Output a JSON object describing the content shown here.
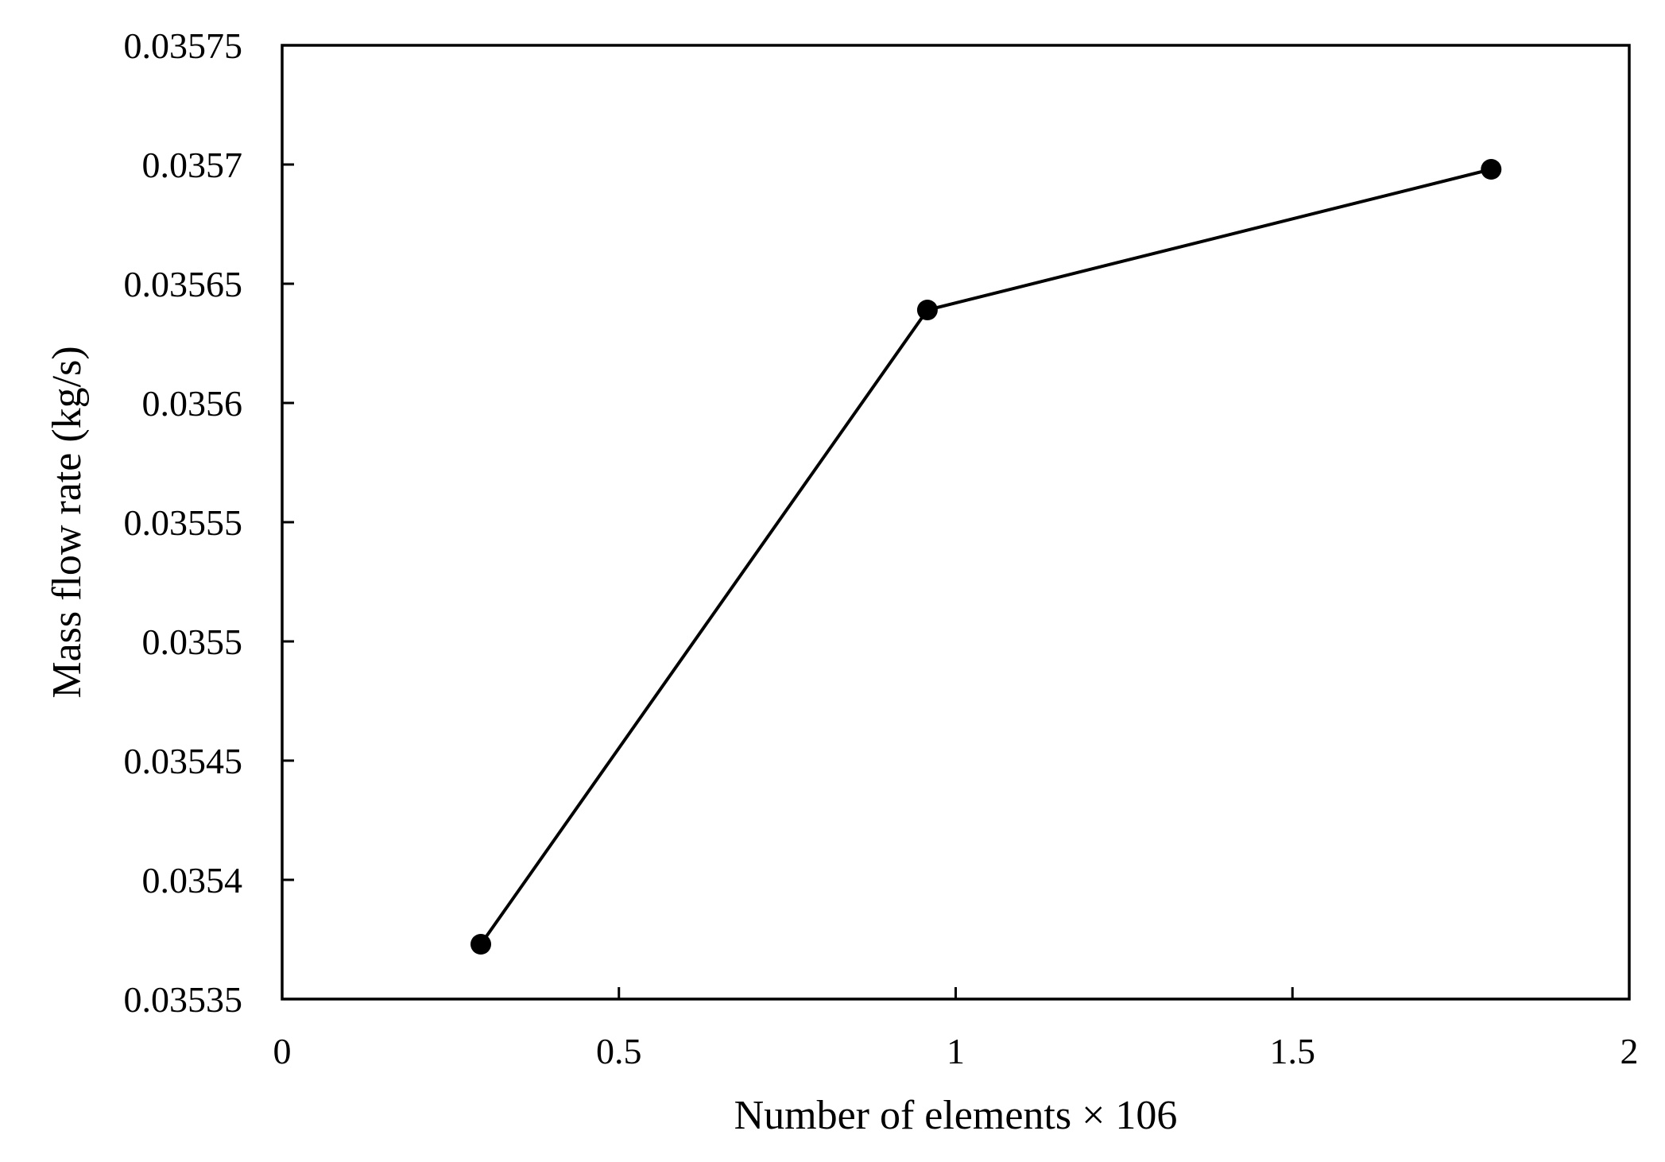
{
  "chart_data": {
    "type": "line",
    "title": "",
    "xlabel": "Number of elements × 106",
    "ylabel": "Mass flow rate (kg/s)",
    "xlim": [
      0,
      2
    ],
    "ylim": [
      0.03535,
      0.03575
    ],
    "x_ticks": [
      0,
      0.5,
      1,
      1.5,
      2
    ],
    "x_tick_labels": [
      "0",
      "0.5",
      "1",
      "1.5",
      "2"
    ],
    "y_ticks": [
      0.03535,
      0.0354,
      0.03545,
      0.0355,
      0.03555,
      0.0356,
      0.03565,
      0.0357,
      0.03575
    ],
    "y_tick_labels": [
      "0.03535",
      "0.0354",
      "0.03545",
      "0.0355",
      "0.03555",
      "0.0356",
      "0.03565",
      "0.0357",
      "0.03575"
    ],
    "grid": false,
    "legend": "none",
    "series": [
      {
        "color": "#000000",
        "marker": "circle",
        "x": [
          0.295,
          0.958,
          1.795
        ],
        "y": [
          0.035373,
          0.035639,
          0.035698
        ]
      }
    ]
  }
}
